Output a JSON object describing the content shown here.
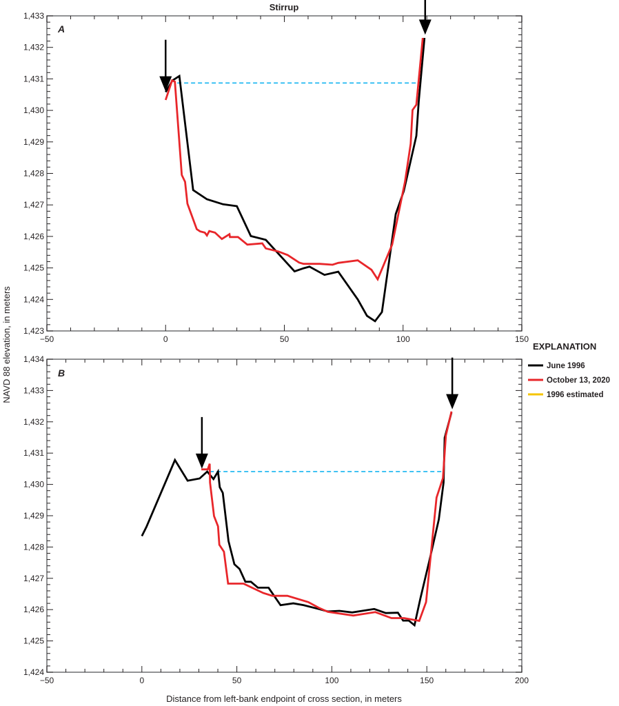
{
  "chart_data": [
    {
      "type": "line",
      "title": "Stirrup",
      "panel_label": "A",
      "xlim": [
        -50,
        150
      ],
      "ylim": [
        1423,
        1433
      ],
      "x_ticks": [
        -50,
        0,
        50,
        100,
        150
      ],
      "x_tick_labels": [
        "−50",
        "0",
        "50",
        "100",
        "150"
      ],
      "y_ticks": [
        1423,
        1424,
        1425,
        1426,
        1427,
        1428,
        1429,
        1430,
        1431,
        1432,
        1433
      ],
      "y_tick_labels": [
        "1,423",
        "1,424",
        "1,425",
        "1,426",
        "1,427",
        "1,428",
        "1,429",
        "1,430",
        "1,431",
        "1,432",
        "1,433"
      ],
      "grid": false,
      "series": [
        {
          "name": "June 1996",
          "color": "#000000",
          "x": [
            0,
            2.9,
            5.8,
            11.6,
            17.4,
            24.2,
            30.0,
            35.9,
            42.2,
            54.3,
            58.1,
            60.6,
            66.9,
            72.7,
            80.9,
            84.8,
            88.2,
            91.1,
            96.9,
            100.3,
            105.6,
            106.6,
            109.0
          ],
          "y": [
            1430.58,
            1430.95,
            1431.09,
            1427.47,
            1427.18,
            1427.02,
            1426.96,
            1426.01,
            1425.89,
            1424.89,
            1424.99,
            1425.04,
            1424.78,
            1424.88,
            1424.0,
            1423.48,
            1423.31,
            1423.6,
            1426.71,
            1427.44,
            1429.19,
            1430.29,
            1432.3
          ]
        },
        {
          "name": "October 13, 2020",
          "color": "#e8262a",
          "x": [
            0,
            2.7,
            3.9,
            6.8,
            8.2,
            9.2,
            13.1,
            14.5,
            16.5,
            17.4,
            18.4,
            20.8,
            23.7,
            26.9,
            27.1,
            30.5,
            34.4,
            40.7,
            42.2,
            47.5,
            51.4,
            56.2,
            58.1,
            64.9,
            70.3,
            72.7,
            80.9,
            86.7,
            89.3,
            95.4,
            100.8,
            103.2,
            104.0,
            105.6,
            108.3
          ],
          "y": [
            1430.33,
            1430.95,
            1430.91,
            1427.95,
            1427.73,
            1427.04,
            1426.23,
            1426.16,
            1426.12,
            1426.03,
            1426.17,
            1426.12,
            1425.92,
            1426.07,
            1425.98,
            1425.98,
            1425.74,
            1425.78,
            1425.62,
            1425.52,
            1425.41,
            1425.17,
            1425.13,
            1425.13,
            1425.1,
            1425.16,
            1425.24,
            1424.94,
            1424.64,
            1425.74,
            1427.73,
            1428.94,
            1430.01,
            1430.18,
            1432.3
          ]
        }
      ],
      "water_surface": {
        "color": "#00aeef",
        "y": 1430.87,
        "x": [
          4.9,
          106.1
        ]
      },
      "arrows": [
        {
          "x": 0,
          "y_tip": 1430.6
        },
        {
          "x": 109.3,
          "y_tip": 1432.4
        }
      ]
    },
    {
      "type": "line",
      "panel_label": "B",
      "xlabel": "Distance from left-bank endpoint of cross section, in meters",
      "xlim": [
        -50,
        200
      ],
      "ylim": [
        1424,
        1434
      ],
      "x_ticks": [
        -50,
        0,
        50,
        100,
        150,
        200
      ],
      "x_tick_labels": [
        "−50",
        "0",
        "50",
        "100",
        "150",
        "200"
      ],
      "y_ticks": [
        1424,
        1425,
        1426,
        1427,
        1428,
        1429,
        1430,
        1431,
        1432,
        1433,
        1434
      ],
      "y_tick_labels": [
        "1,424",
        "1,425",
        "1,426",
        "1,427",
        "1,428",
        "1,429",
        "1,430",
        "1,431",
        "1,432",
        "1,433",
        "1,434"
      ],
      "grid": false,
      "series": [
        {
          "name": "June 1996",
          "color": "#000000",
          "x": [
            0,
            2.4,
            17.4,
            24.1,
            30.4,
            34.4,
            37.7,
            40.1,
            41.0,
            42.6,
            45.6,
            48.7,
            51.4,
            54.5,
            57.4,
            61.1,
            66.7,
            73.0,
            79.7,
            85.2,
            93.1,
            97.9,
            104.0,
            110.7,
            122.3,
            128.4,
            134.8,
            137.5,
            140.5,
            143.5,
            146.6,
            151.5,
            156.3,
            158.8,
            159.4,
            163.0
          ],
          "y": [
            1428.35,
            1428.64,
            1430.78,
            1430.12,
            1430.19,
            1430.41,
            1430.17,
            1430.41,
            1429.91,
            1429.73,
            1428.19,
            1427.45,
            1427.3,
            1426.89,
            1426.89,
            1426.7,
            1426.7,
            1426.14,
            1426.2,
            1426.14,
            1426.02,
            1425.94,
            1425.96,
            1425.91,
            1426.02,
            1425.89,
            1425.9,
            1425.65,
            1425.65,
            1425.5,
            1426.35,
            1427.6,
            1428.88,
            1430.06,
            1431.49,
            1432.3
          ]
        },
        {
          "name": "October 13, 2020",
          "color": "#e8262a",
          "x": [
            31.3,
            34.7,
            35.7,
            35.9,
            38.0,
            40.1,
            40.8,
            43.2,
            45.4,
            53.5,
            63.9,
            68.7,
            76.6,
            87.6,
            93.1,
            97.9,
            111.3,
            122.9,
            131.4,
            138.0,
            146.0,
            149.6,
            155.1,
            158.5,
            160.0,
            163.0
          ],
          "y": [
            1430.48,
            1430.48,
            1430.66,
            1430.06,
            1428.99,
            1428.66,
            1428.07,
            1427.85,
            1426.83,
            1426.83,
            1426.53,
            1426.44,
            1426.44,
            1426.24,
            1426.06,
            1425.93,
            1425.81,
            1425.92,
            1425.73,
            1425.73,
            1425.64,
            1426.24,
            1429.58,
            1430.2,
            1431.56,
            1432.33
          ]
        }
      ],
      "water_surface": {
        "color": "#00aeef",
        "y": 1430.41,
        "x": [
          35.7,
          158.8
        ]
      },
      "arrows": [
        {
          "x": 31.6,
          "y_tip": 1430.5
        },
        {
          "x": 163.4,
          "y_tip": 1432.4
        }
      ]
    }
  ],
  "ylabel": "NAVD 88 elevation, in meters",
  "legend": {
    "title": "EXPLANATION",
    "placement": "right",
    "items": [
      {
        "label": "June 1996",
        "color": "#000000"
      },
      {
        "label": "October 13, 2020",
        "color": "#e8262a"
      },
      {
        "label": "1996 estimated",
        "color": "#f5c400"
      }
    ]
  }
}
